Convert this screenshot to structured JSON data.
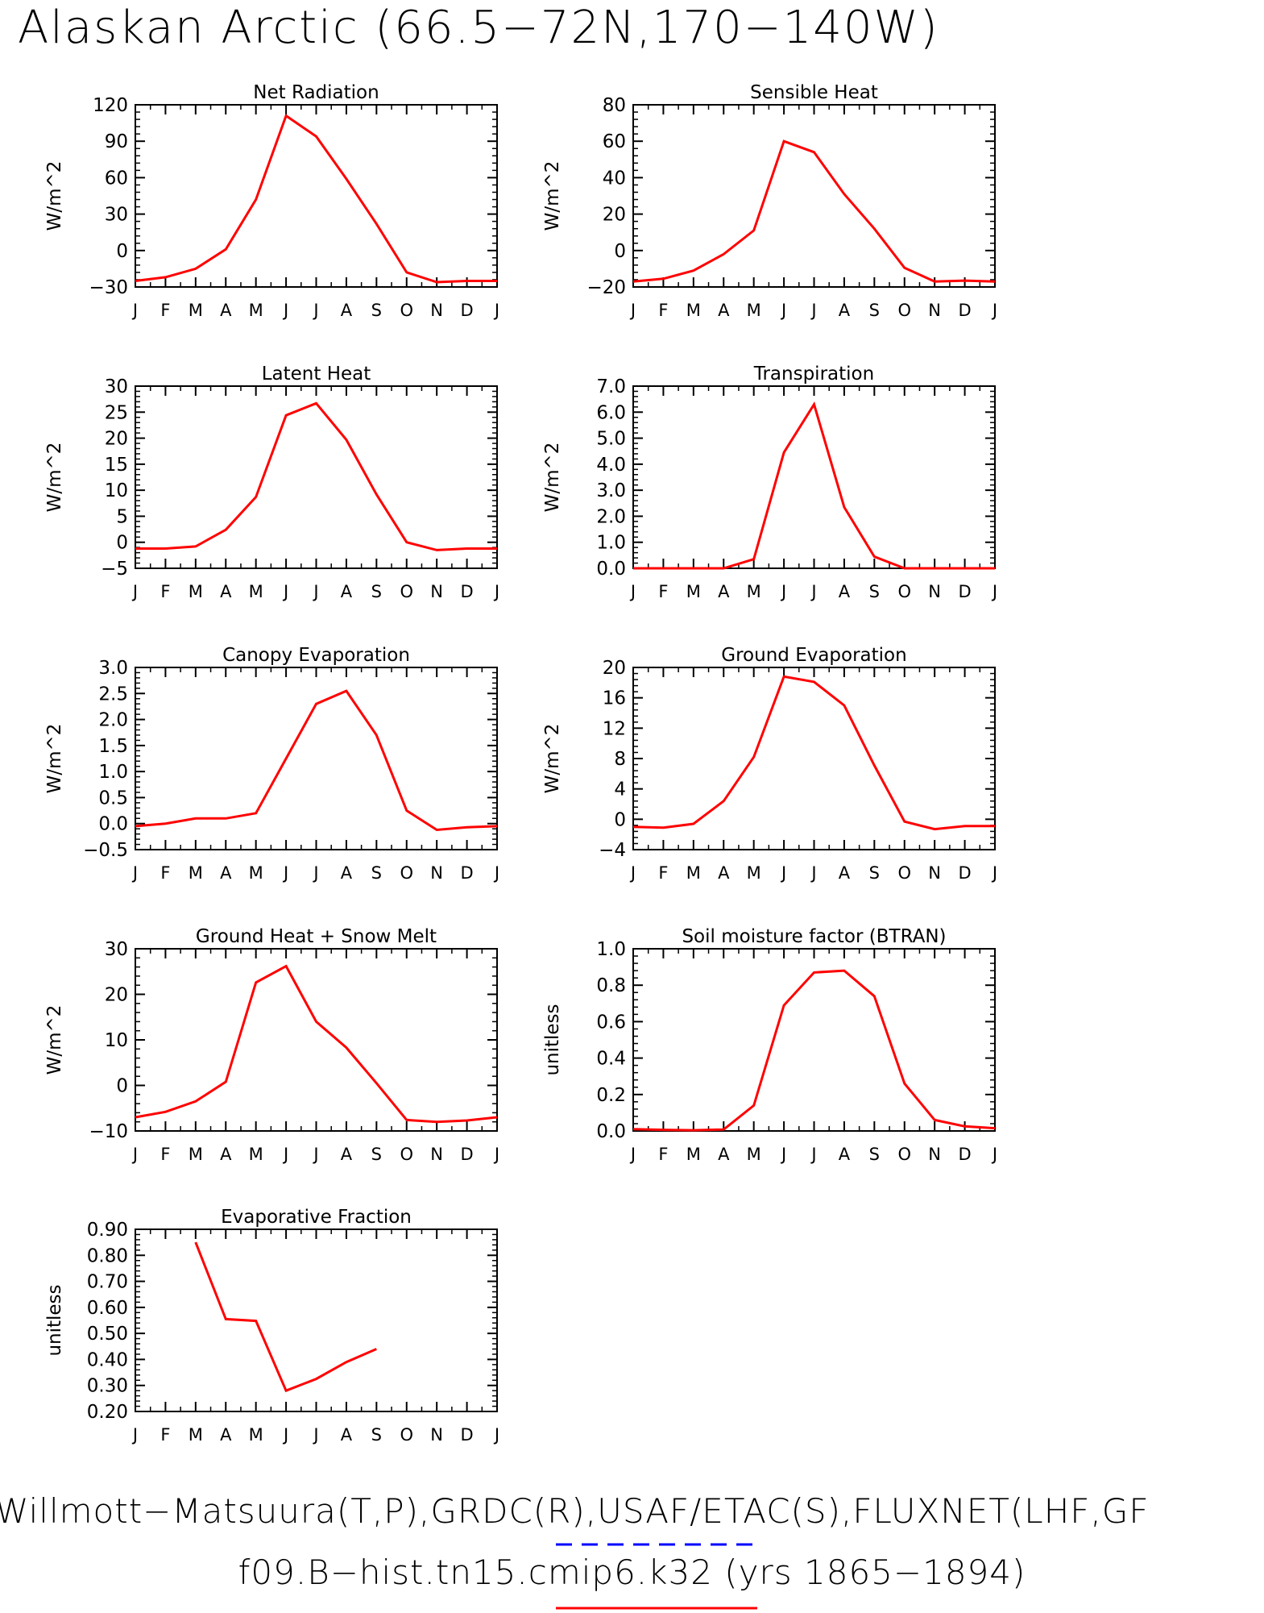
{
  "page": {
    "title": "Alaskan Arctic (66.5−72N,170−140W)",
    "footer_obs": "Willmott−Matsuura(T,P),GRDC(R),USAF/ETAC(S),FLUXNET(LHF,GF",
    "footer_model": "f09.B−hist.tn15.cmip6.k32 (yrs 1865−1894)",
    "colors": {
      "model_line": "#ff0000",
      "obs_dash": "#0000ff",
      "axis": "#000000"
    }
  },
  "chart_data": [
    {
      "type": "line",
      "title": "Net Radiation",
      "ylabel": "W/m^2",
      "categories": [
        "J",
        "F",
        "M",
        "A",
        "M",
        "J",
        "J",
        "A",
        "S",
        "O",
        "N",
        "D",
        "J"
      ],
      "ylim": [
        -30,
        120
      ],
      "yticks": [
        -30,
        0,
        30,
        60,
        90,
        120
      ],
      "ytick_labels": [
        "−30",
        "0",
        "30",
        "60",
        "90",
        "120"
      ],
      "values": [
        -25,
        -22,
        -15,
        1,
        42,
        111,
        94,
        59,
        22,
        -18,
        -26,
        -25,
        -25
      ]
    },
    {
      "type": "line",
      "title": "Sensible Heat",
      "ylabel": "W/m^2",
      "categories": [
        "J",
        "F",
        "M",
        "A",
        "M",
        "J",
        "J",
        "A",
        "S",
        "O",
        "N",
        "D",
        "J"
      ],
      "ylim": [
        -20,
        80
      ],
      "yticks": [
        -20,
        0,
        20,
        40,
        60,
        80
      ],
      "ytick_labels": [
        "−20",
        "0",
        "20",
        "40",
        "60",
        "80"
      ],
      "values": [
        -17,
        -15.5,
        -11,
        -2,
        11,
        60,
        54,
        31,
        12,
        -9.5,
        -17,
        -16.5,
        -17
      ]
    },
    {
      "type": "line",
      "title": "Latent Heat",
      "ylabel": "W/m^2",
      "categories": [
        "J",
        "F",
        "M",
        "A",
        "M",
        "J",
        "J",
        "A",
        "S",
        "O",
        "N",
        "D",
        "J"
      ],
      "ylim": [
        -5,
        30
      ],
      "yticks": [
        -5,
        0,
        5,
        10,
        15,
        20,
        25,
        30
      ],
      "ytick_labels": [
        "−5",
        "0",
        "5",
        "10",
        "15",
        "20",
        "25",
        "30"
      ],
      "values": [
        -1.2,
        -1.2,
        -0.8,
        2.4,
        8.7,
        24.4,
        26.7,
        19.7,
        9.2,
        0,
        -1.5,
        -1.2,
        -1.2
      ]
    },
    {
      "type": "line",
      "title": "Transpiration",
      "ylabel": "W/m^2",
      "categories": [
        "J",
        "F",
        "M",
        "A",
        "M",
        "J",
        "J",
        "A",
        "S",
        "O",
        "N",
        "D",
        "J"
      ],
      "ylim": [
        0,
        7
      ],
      "yticks": [
        0,
        1,
        2,
        3,
        4,
        5,
        6,
        7
      ],
      "ytick_labels": [
        "0.0",
        "1.0",
        "2.0",
        "3.0",
        "4.0",
        "5.0",
        "6.0",
        "7.0"
      ],
      "values": [
        0,
        0,
        0,
        0,
        0.35,
        4.45,
        6.3,
        2.35,
        0.45,
        0,
        0,
        0,
        0
      ]
    },
    {
      "type": "line",
      "title": "Canopy Evaporation",
      "ylabel": "W/m^2",
      "categories": [
        "J",
        "F",
        "M",
        "A",
        "M",
        "J",
        "J",
        "A",
        "S",
        "O",
        "N",
        "D",
        "J"
      ],
      "ylim": [
        -0.5,
        3.0
      ],
      "yticks": [
        -0.5,
        0,
        0.5,
        1.0,
        1.5,
        2.0,
        2.5,
        3.0
      ],
      "ytick_labels": [
        "−0.5",
        "0.0",
        "0.5",
        "1.0",
        "1.5",
        "2.0",
        "2.5",
        "3.0"
      ],
      "values": [
        -0.05,
        0,
        0.1,
        0.1,
        0.2,
        1.25,
        2.3,
        2.55,
        1.7,
        0.25,
        -0.12,
        -0.07,
        -0.05
      ]
    },
    {
      "type": "line",
      "title": "Ground Evaporation",
      "ylabel": "W/m^2",
      "categories": [
        "J",
        "F",
        "M",
        "A",
        "M",
        "J",
        "J",
        "A",
        "S",
        "O",
        "N",
        "D",
        "J"
      ],
      "ylim": [
        -4,
        20
      ],
      "yticks": [
        -4,
        0,
        4,
        8,
        12,
        16,
        20
      ],
      "ytick_labels": [
        "−4",
        "0",
        "4",
        "8",
        "12",
        "16",
        "20"
      ],
      "values": [
        -1,
        -1.1,
        -0.6,
        2.4,
        8.2,
        18.8,
        18.1,
        15,
        7.1,
        -0.3,
        -1.3,
        -0.9,
        -0.9
      ]
    },
    {
      "type": "line",
      "title": "Ground Heat + Snow Melt",
      "ylabel": "W/m^2",
      "categories": [
        "J",
        "F",
        "M",
        "A",
        "M",
        "J",
        "J",
        "A",
        "S",
        "O",
        "N",
        "D",
        "J"
      ],
      "ylim": [
        -10,
        30
      ],
      "yticks": [
        -10,
        0,
        10,
        20,
        30
      ],
      "ytick_labels": [
        "−10",
        "0",
        "10",
        "20",
        "30"
      ],
      "values": [
        -7,
        -5.8,
        -3.5,
        0.8,
        22.6,
        26.2,
        14,
        8.3,
        0.5,
        -7.6,
        -8,
        -7.7,
        -7
      ]
    },
    {
      "type": "line",
      "title": "Soil moisture factor (BTRAN)",
      "ylabel": "unitless",
      "categories": [
        "J",
        "F",
        "M",
        "A",
        "M",
        "J",
        "J",
        "A",
        "S",
        "O",
        "N",
        "D",
        "J"
      ],
      "ylim": [
        0,
        1.0
      ],
      "yticks": [
        0,
        0.2,
        0.4,
        0.6,
        0.8,
        1.0
      ],
      "ytick_labels": [
        "0.0",
        "0.2",
        "0.4",
        "0.6",
        "0.8",
        "1.0"
      ],
      "values": [
        0.01,
        0.006,
        0.004,
        0.008,
        0.14,
        0.69,
        0.87,
        0.88,
        0.74,
        0.26,
        0.06,
        0.025,
        0.015
      ]
    },
    {
      "type": "line",
      "title": "Evaporative Fraction",
      "ylabel": "unitless",
      "categories": [
        "J",
        "F",
        "M",
        "A",
        "M",
        "J",
        "J",
        "A",
        "S",
        "O",
        "N",
        "D",
        "J"
      ],
      "ylim": [
        0.2,
        0.9
      ],
      "yticks": [
        0.2,
        0.3,
        0.4,
        0.5,
        0.6,
        0.7,
        0.8,
        0.9
      ],
      "ytick_labels": [
        "0.20",
        "0.30",
        "0.40",
        "0.50",
        "0.60",
        "0.70",
        "0.80",
        "0.90"
      ],
      "values": [
        null,
        null,
        0.85,
        0.555,
        0.548,
        0.28,
        0.325,
        0.39,
        0.44,
        null,
        null,
        null,
        null
      ]
    }
  ]
}
